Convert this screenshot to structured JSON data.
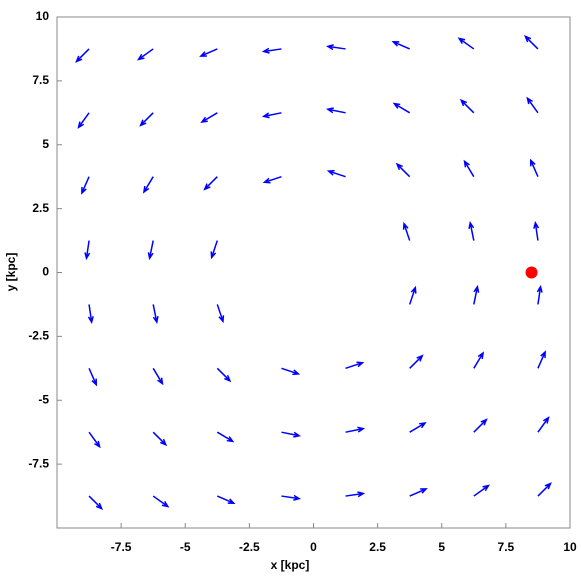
{
  "chart_data": {
    "type": "quiver",
    "xlabel": "x [kpc]",
    "ylabel": "y [kpc]",
    "xlim": [
      -10,
      10
    ],
    "ylim": [
      -10,
      10
    ],
    "xticks": [
      -7.5,
      -5,
      -2.5,
      0,
      2.5,
      5,
      7.5,
      10
    ],
    "yticks": [
      -7.5,
      -5,
      -2.5,
      0,
      2.5,
      5,
      7.5,
      10
    ],
    "color": "#0000ff",
    "x": [
      -8.75,
      -6.25,
      -3.75,
      -1.25,
      1.25,
      3.75,
      6.25,
      8.75,
      -8.75,
      -6.25,
      -3.75,
      -1.25,
      1.25,
      3.75,
      6.25,
      8.75,
      -8.75,
      -6.25,
      -3.75,
      -1.25,
      1.25,
      3.75,
      6.25,
      8.75,
      -8.75,
      -6.25,
      -3.75,
      3.75,
      6.25,
      8.75,
      -8.75,
      -6.25,
      -3.75,
      3.75,
      6.25,
      8.75,
      -8.75,
      -6.25,
      -3.75,
      -1.25,
      1.25,
      3.75,
      6.25,
      8.75,
      -8.75,
      -6.25,
      -3.75,
      -1.25,
      1.25,
      3.75,
      6.25,
      8.75,
      -8.75,
      -6.25,
      -3.75,
      -1.25,
      1.25,
      3.75,
      6.25,
      8.75
    ],
    "y": [
      8.75,
      8.75,
      8.75,
      8.75,
      8.75,
      8.75,
      8.75,
      8.75,
      6.25,
      6.25,
      6.25,
      6.25,
      6.25,
      6.25,
      6.25,
      6.25,
      3.75,
      3.75,
      3.75,
      3.75,
      3.75,
      3.75,
      3.75,
      3.75,
      1.25,
      1.25,
      1.25,
      1.25,
      1.25,
      1.25,
      -1.25,
      -1.25,
      -1.25,
      -1.25,
      -1.25,
      -1.25,
      -3.75,
      -3.75,
      -3.75,
      -3.75,
      -3.75,
      -3.75,
      -3.75,
      -3.75,
      -6.25,
      -6.25,
      -6.25,
      -6.25,
      -6.25,
      -6.25,
      -6.25,
      -6.25,
      -8.75,
      -8.75,
      -8.75,
      -8.75,
      -8.75,
      -8.75,
      -8.75,
      -8.75
    ],
    "u": [
      -0.49,
      -0.57,
      -0.64,
      -0.69,
      -0.69,
      -0.64,
      -0.57,
      -0.49,
      -0.41,
      -0.49,
      -0.6,
      -0.69,
      -0.69,
      -0.6,
      -0.49,
      -0.41,
      -0.28,
      -0.36,
      -0.49,
      -0.66,
      -0.66,
      -0.49,
      -0.36,
      -0.28,
      -0.1,
      -0.14,
      -0.22,
      -0.22,
      -0.14,
      -0.1,
      0.1,
      0.14,
      0.22,
      0.22,
      0.14,
      0.1,
      0.28,
      0.36,
      0.49,
      0.66,
      0.66,
      0.49,
      0.36,
      0.28,
      0.41,
      0.49,
      0.6,
      0.69,
      0.69,
      0.6,
      0.49,
      0.41,
      0.49,
      0.57,
      0.64,
      0.69,
      0.69,
      0.64,
      0.57,
      0.49
    ],
    "v": [
      -0.49,
      -0.41,
      -0.28,
      -0.1,
      0.1,
      0.28,
      0.41,
      0.49,
      -0.57,
      -0.49,
      -0.36,
      -0.14,
      0.14,
      0.36,
      0.49,
      0.57,
      -0.64,
      -0.6,
      -0.49,
      -0.22,
      0.22,
      0.49,
      0.6,
      0.64,
      -0.69,
      -0.69,
      -0.66,
      0.66,
      0.69,
      0.69,
      -0.69,
      -0.69,
      -0.66,
      0.66,
      0.69,
      0.69,
      -0.64,
      -0.6,
      -0.49,
      -0.22,
      0.22,
      0.49,
      0.6,
      0.64,
      -0.57,
      -0.49,
      -0.36,
      -0.14,
      0.14,
      0.36,
      0.49,
      0.57,
      -0.49,
      -0.41,
      -0.28,
      -0.1,
      0.1,
      0.28,
      0.41,
      0.49
    ],
    "points": [
      {
        "x": 8.5,
        "y": 0,
        "color": "#ff0000"
      }
    ]
  }
}
